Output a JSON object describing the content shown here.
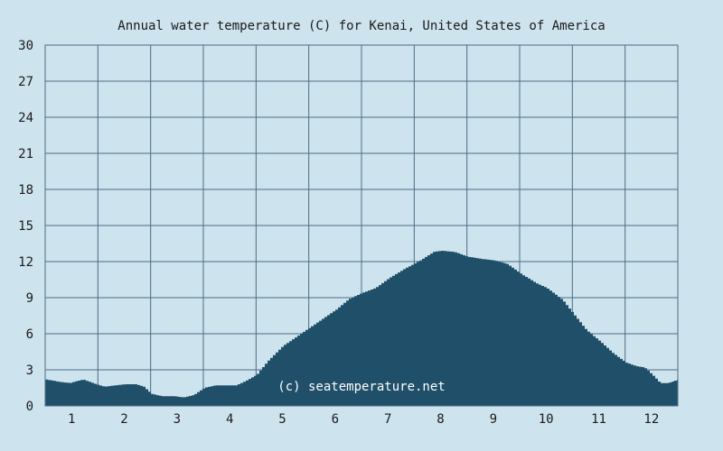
{
  "chart_data": {
    "type": "area",
    "title": "Annual water temperature (C) for Kenai, United States of America",
    "xlabel": "",
    "ylabel": "",
    "ylim": [
      0,
      30
    ],
    "xlim": [
      0.5,
      12.5
    ],
    "y_ticks": [
      0,
      3,
      6,
      9,
      12,
      15,
      18,
      21,
      24,
      27,
      30
    ],
    "x_ticks": [
      1,
      2,
      3,
      4,
      5,
      6,
      7,
      8,
      9,
      10,
      11,
      12
    ],
    "grid": true,
    "watermark": "(c) seatemperature.net",
    "colors": {
      "background": "#cde3ee",
      "area": "#1f4f69",
      "grid": "#4d6c82",
      "text": "#1a1a1a"
    },
    "series": [
      {
        "values": [
          [
            0.5,
            2.2
          ],
          [
            0.75,
            2.0
          ],
          [
            0.95,
            1.9
          ],
          [
            1.2,
            2.2
          ],
          [
            1.45,
            1.8
          ],
          [
            1.6,
            1.6
          ],
          [
            1.8,
            1.7
          ],
          [
            2.0,
            1.8
          ],
          [
            2.2,
            1.8
          ],
          [
            2.35,
            1.6
          ],
          [
            2.5,
            1.0
          ],
          [
            2.7,
            0.8
          ],
          [
            2.95,
            0.8
          ],
          [
            3.1,
            0.7
          ],
          [
            3.3,
            0.9
          ],
          [
            3.5,
            1.5
          ],
          [
            3.7,
            1.7
          ],
          [
            3.95,
            1.7
          ],
          [
            4.1,
            1.7
          ],
          [
            4.3,
            2.1
          ],
          [
            4.5,
            2.6
          ],
          [
            4.7,
            3.7
          ],
          [
            5.0,
            5.0
          ],
          [
            5.3,
            5.9
          ],
          [
            5.6,
            6.8
          ],
          [
            6.0,
            8.0
          ],
          [
            6.25,
            8.9
          ],
          [
            6.5,
            9.4
          ],
          [
            6.75,
            9.8
          ],
          [
            7.0,
            10.6
          ],
          [
            7.3,
            11.4
          ],
          [
            7.6,
            12.1
          ],
          [
            7.85,
            12.8
          ],
          [
            8.0,
            12.9
          ],
          [
            8.25,
            12.8
          ],
          [
            8.5,
            12.4
          ],
          [
            8.8,
            12.2
          ],
          [
            9.0,
            12.1
          ],
          [
            9.25,
            11.8
          ],
          [
            9.5,
            11.0
          ],
          [
            9.8,
            10.2
          ],
          [
            10.0,
            9.8
          ],
          [
            10.3,
            8.8
          ],
          [
            10.55,
            7.4
          ],
          [
            10.75,
            6.3
          ],
          [
            11.0,
            5.4
          ],
          [
            11.25,
            4.4
          ],
          [
            11.5,
            3.6
          ],
          [
            11.7,
            3.3
          ],
          [
            11.85,
            3.2
          ],
          [
            12.0,
            2.6
          ],
          [
            12.15,
            1.9
          ],
          [
            12.3,
            1.9
          ],
          [
            12.5,
            2.2
          ]
        ]
      }
    ]
  }
}
